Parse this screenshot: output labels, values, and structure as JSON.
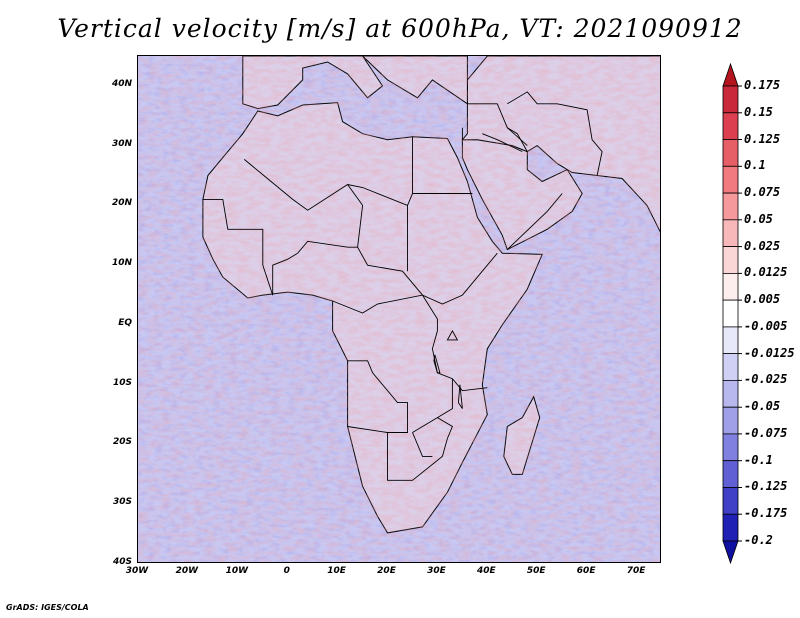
{
  "title": "Vertical velocity [m/s] at 600hPa, VT: 2021090912",
  "credit": "GrADS: IGES/COLA",
  "map": {
    "lat_ticks": [
      "40N",
      "30N",
      "20N",
      "10N",
      "EQ",
      "10S",
      "20S",
      "30S",
      "40S"
    ],
    "lon_ticks": [
      "30W",
      "20W",
      "10W",
      "0",
      "10E",
      "20E",
      "30E",
      "40E",
      "50E",
      "60E",
      "70E"
    ],
    "ocean_color": "#c8c8f2",
    "land_color": "#dccfe8"
  },
  "colorbar": {
    "labels": [
      "0.175",
      "0.15",
      "0.125",
      "0.1",
      "0.075",
      "0.05",
      "0.025",
      "0.0125",
      "0.005",
      "-0.005",
      "-0.0125",
      "-0.025",
      "-0.05",
      "-0.075",
      "-0.1",
      "-0.125",
      "-0.175",
      "-0.2"
    ],
    "colors": [
      "#b4141e",
      "#c8283a",
      "#dc4050",
      "#e65e66",
      "#f07a80",
      "#f5999c",
      "#f8b8ba",
      "#fbd6d6",
      "#fdeeee",
      "#ffffff",
      "#e8e8fb",
      "#d0d0f5",
      "#b8b8ef",
      "#a0a0e8",
      "#8080e0",
      "#6060d4",
      "#4040c6",
      "#2020b4",
      "#1010a0"
    ]
  }
}
